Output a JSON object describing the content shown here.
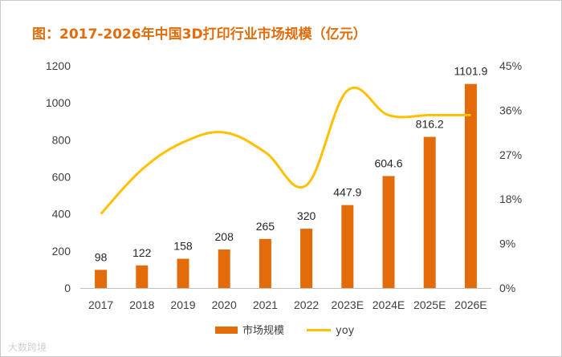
{
  "chart_data": {
    "type": "bar",
    "title": "图：2017-2026年中国3D打印行业市场规模（亿元）",
    "categories": [
      "2017",
      "2018",
      "2019",
      "2020",
      "2021",
      "2022",
      "2023E",
      "2024E",
      "2025E",
      "2026E"
    ],
    "series": [
      {
        "name": "市场规模",
        "type": "bar",
        "axis": "left",
        "values": [
          98,
          122,
          158,
          208,
          265,
          320,
          447.9,
          604.6,
          816.2,
          1101.9
        ],
        "labels": [
          "98",
          "122",
          "158",
          "208",
          "265",
          "320",
          "447.9",
          "604.6",
          "816.2",
          "1101.9"
        ],
        "color": "#e36c0a"
      },
      {
        "name": "yoy",
        "type": "line",
        "axis": "right",
        "values": [
          15,
          24,
          29.5,
          31.5,
          27.5,
          20.8,
          40,
          35,
          35,
          35
        ],
        "color": "#ffc000"
      }
    ],
    "y_left": {
      "ylim": [
        0,
        1200
      ],
      "ticks": [
        "0",
        "200",
        "400",
        "600",
        "800",
        "1000",
        "1200"
      ]
    },
    "y_right": {
      "ylim": [
        0,
        45
      ],
      "ticks": [
        "0%",
        "9%",
        "18%",
        "27%",
        "36%",
        "45%"
      ]
    },
    "legend_position": "bottom",
    "grid": false
  },
  "watermark": "大数跨境"
}
